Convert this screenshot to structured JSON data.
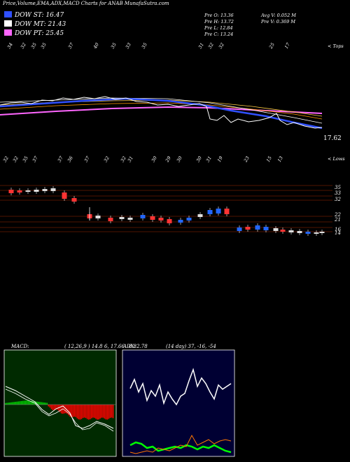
{
  "header": {
    "title": "Price,Volume,EMA,ADX,MACD Charts for ANAB MunafaSutra.com",
    "prev_open": "Pre   O: 13.36",
    "prev_high": "Pre   H: 13.72",
    "prev_low": "Pre   L: 12.84",
    "prev_close": "Pre   C: 13.24",
    "avg_vol": "Avg V: 0.052  M",
    "prev_vol": "Pre   V: 0.369 M"
  },
  "legend": [
    {
      "label": "DOW ST: 16.47",
      "color": "#3050ff"
    },
    {
      "label": "DOW MT: 21.43",
      "color": "#ffffff"
    },
    {
      "label": "DOW PT: 25.45",
      "color": "#ff66ff"
    }
  ],
  "price_panel": {
    "last_price": "17.62",
    "tops_label": "< Tops",
    "lows_label": "< Lows",
    "top_numbers": [
      "34",
      "32",
      "35",
      "35",
      "37",
      "40",
      "35",
      "33",
      "35",
      "31",
      "32",
      "32",
      "25",
      "17"
    ],
    "low_numbers": [
      "32",
      "32",
      "35",
      "37",
      "37",
      "36",
      "37",
      "32",
      "32",
      "31",
      "30",
      "29",
      "30",
      "30",
      "31",
      "19",
      "23",
      "15",
      "13"
    ]
  },
  "candle_panel": {
    "price_levels": [
      "35",
      "33",
      "32",
      "22",
      "21",
      "16",
      "14"
    ]
  },
  "macd_panel": {
    "label": "MACD:",
    "params": "( 12,26,9 ) 14.8",
    "values": "6, 17.66",
    "extra": "8.82.78"
  },
  "adx_panel": {
    "label": "ADX:",
    "params": "(14  day) 37, -16,  -54"
  },
  "colors": {
    "ema_short": "#3050ff",
    "ema_mid": "#ffffff",
    "ema_long": "#ff66ff",
    "macd_positive": "#00cc00",
    "macd_negative": "#ff0000",
    "macd_bg": "#002a00",
    "adx_bg": "#000033",
    "adx_plus": "#00ff00",
    "adx_minus": "#ff7700"
  },
  "chart_data": {
    "type": "line",
    "title": "Price,Volume,EMA,ADX,MACD Charts for ANAB",
    "series": [
      {
        "name": "DOW ST",
        "last": 16.47
      },
      {
        "name": "DOW MT",
        "last": 21.43
      },
      {
        "name": "DOW PT",
        "last": 25.45
      }
    ],
    "last_close": 17.62
  }
}
